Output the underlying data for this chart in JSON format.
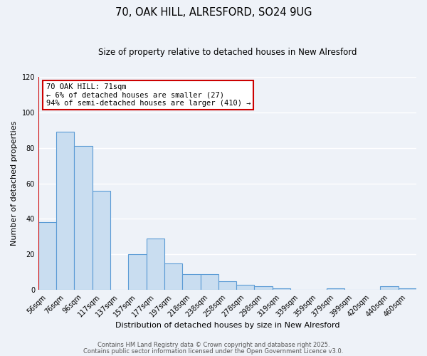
{
  "title1": "70, OAK HILL, ALRESFORD, SO24 9UG",
  "title2": "Size of property relative to detached houses in New Alresford",
  "xlabel": "Distribution of detached houses by size in New Alresford",
  "ylabel": "Number of detached properties",
  "categories": [
    "56sqm",
    "76sqm",
    "96sqm",
    "117sqm",
    "137sqm",
    "157sqm",
    "177sqm",
    "197sqm",
    "218sqm",
    "238sqm",
    "258sqm",
    "278sqm",
    "298sqm",
    "319sqm",
    "339sqm",
    "359sqm",
    "379sqm",
    "399sqm",
    "420sqm",
    "440sqm",
    "460sqm"
  ],
  "values": [
    38,
    89,
    81,
    56,
    0,
    20,
    29,
    15,
    9,
    9,
    5,
    3,
    2,
    1,
    0,
    0,
    1,
    0,
    0,
    2,
    1
  ],
  "bar_color": "#c9ddf0",
  "bar_edge_color": "#5b9bd5",
  "ylim": [
    0,
    120
  ],
  "yticks": [
    0,
    20,
    40,
    60,
    80,
    100,
    120
  ],
  "annotation_title": "70 OAK HILL: 71sqm",
  "annotation_line1": "← 6% of detached houses are smaller (27)",
  "annotation_line2": "94% of semi-detached houses are larger (410) →",
  "footer1": "Contains HM Land Registry data © Crown copyright and database right 2025.",
  "footer2": "Contains public sector information licensed under the Open Government Licence v3.0.",
  "background_color": "#eef2f8",
  "plot_bg_color": "#eef2f8",
  "grid_color": "#ffffff",
  "red_line_color": "#cc0000",
  "annotation_box_edge": "#cc0000",
  "annotation_box_bg": "#ffffff",
  "title1_fontsize": 10.5,
  "title2_fontsize": 8.5,
  "ylabel_fontsize": 8,
  "xlabel_fontsize": 8,
  "tick_fontsize": 7,
  "footer_fontsize": 6,
  "annotation_fontsize": 7.5
}
